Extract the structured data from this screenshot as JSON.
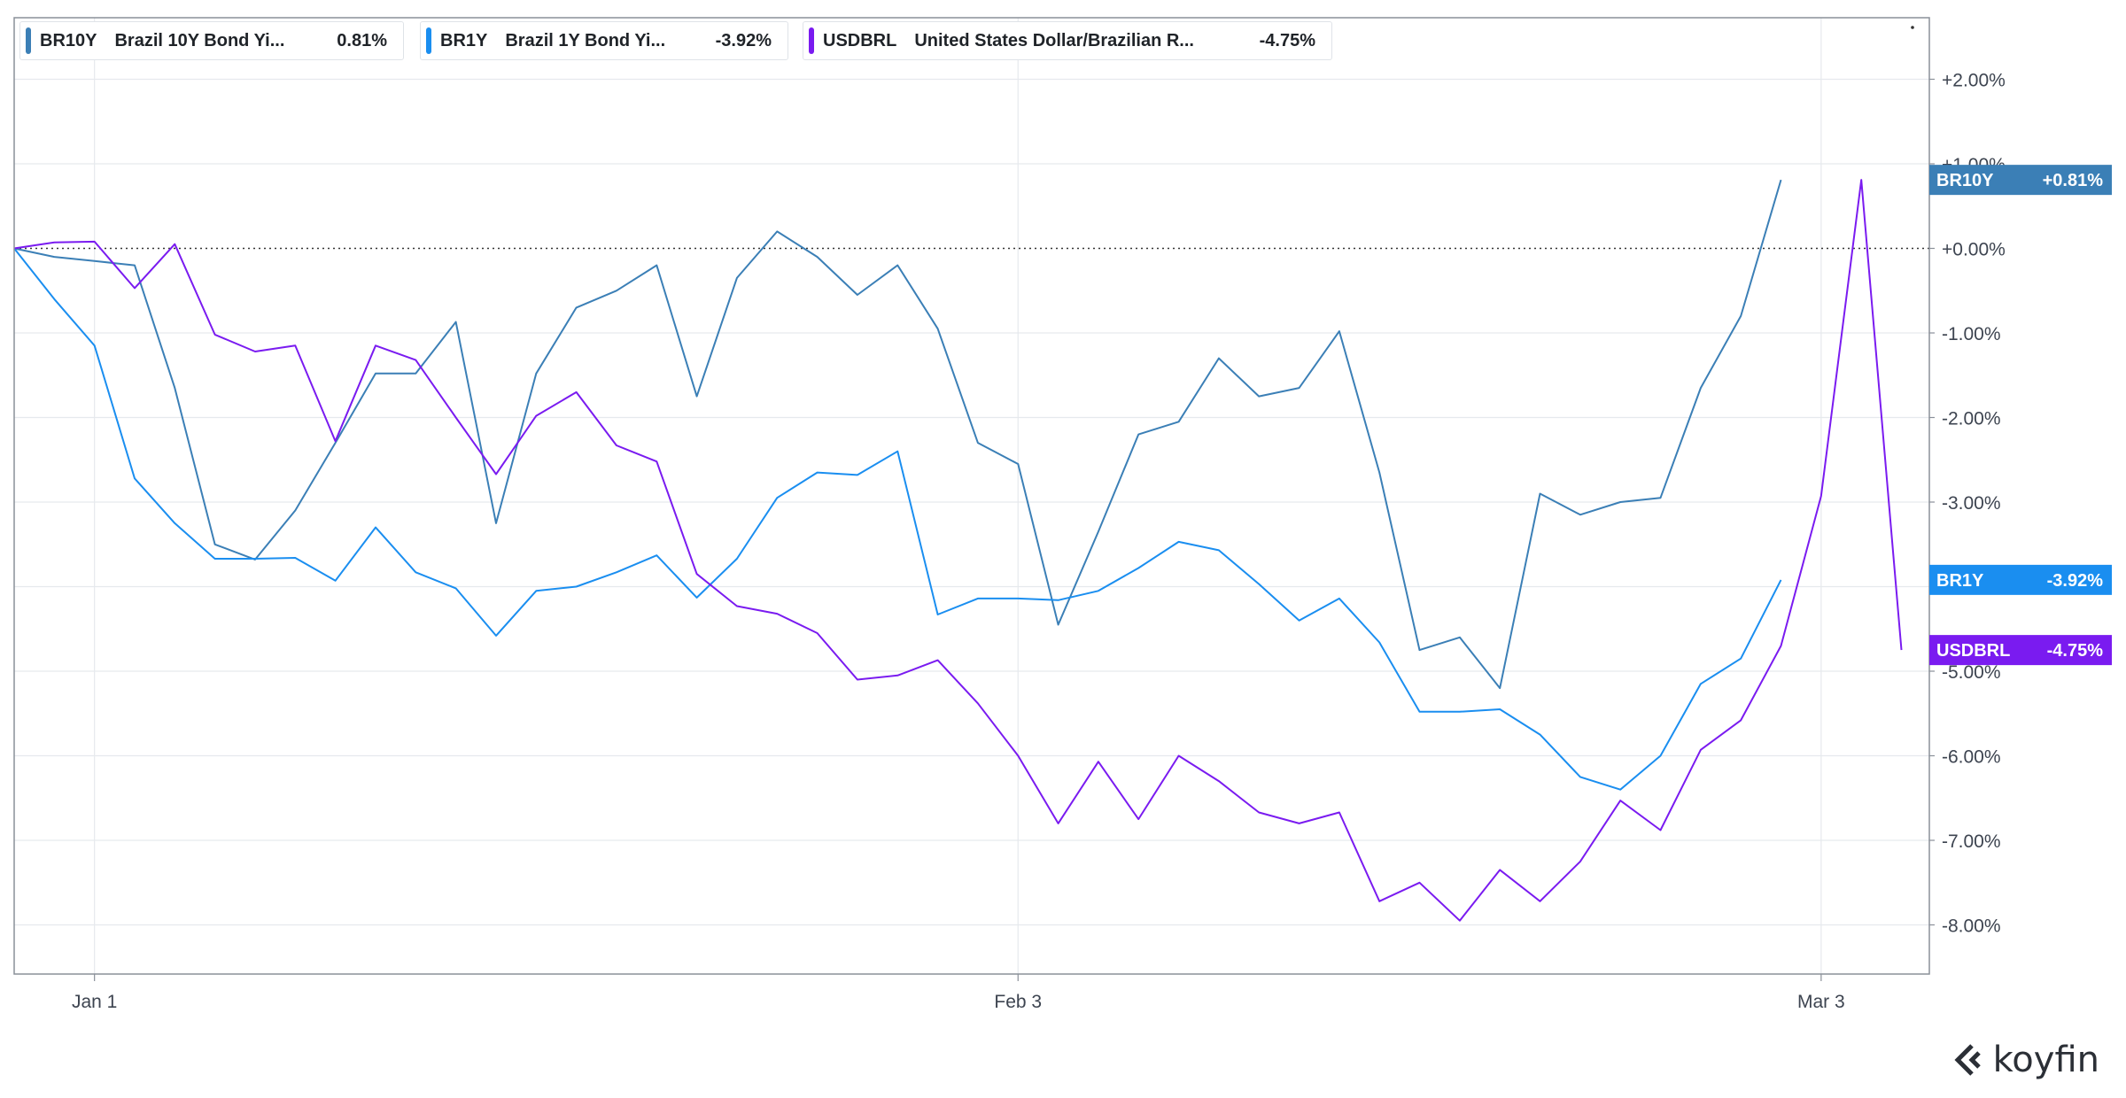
{
  "legend": [
    {
      "ticker": "BR10Y",
      "name": "Brazil 10Y Bond Yi...",
      "value": "0.81%",
      "color": "#3b7fb6"
    },
    {
      "ticker": "BR1Y",
      "name": "Brazil 1Y Bond Yi...",
      "value": "-3.92%",
      "color": "#1a8ef0"
    },
    {
      "ticker": "USDBRL",
      "name": "United States Dollar/Brazilian R...",
      "value": "-4.75%",
      "color": "#7a1bf0"
    }
  ],
  "logo": {
    "text": "koyfin",
    "icon": "koyfin-logo-icon"
  },
  "chart_data": {
    "type": "line",
    "ylim": [
      -8.6,
      2.6
    ],
    "yticks": [
      2,
      1,
      0,
      -1,
      -2,
      -3,
      -4,
      -5,
      -6,
      -7,
      -8
    ],
    "ytick_labels": [
      "+2.00%",
      "+1.00%",
      "+0.00%",
      "-1.00%",
      "-2.00%",
      "-3.00%",
      "-4.00%",
      "-5.00%",
      "-6.00%",
      "-7.00%",
      "-8.00%"
    ],
    "xlim": [
      0,
      48
    ],
    "xticks": [
      {
        "x": 2,
        "label": "Jan 1"
      },
      {
        "x": 25,
        "label": "Feb 3"
      },
      {
        "x": 45,
        "label": "Mar 3"
      }
    ],
    "zero_line": true,
    "grid": true,
    "series": [
      {
        "name": "BR10Y",
        "color": "#3b7fb6",
        "end_label": "+0.81%",
        "values": [
          0,
          -0.1,
          -0.15,
          -0.2,
          -1.65,
          -3.5,
          -3.68,
          -3.1,
          -2.3,
          -1.48,
          -1.48,
          -0.87,
          -3.25,
          -1.48,
          -0.7,
          -0.5,
          -0.2,
          -1.75,
          -0.35,
          0.2,
          -0.1,
          -0.55,
          -0.2,
          -0.95,
          -2.3,
          -2.55,
          -4.45,
          -3.35,
          -2.2,
          -2.05,
          -1.3,
          -1.75,
          -1.65,
          -0.98,
          -2.65,
          -4.75,
          -4.6,
          -5.2,
          -2.9,
          -3.15,
          -3.0,
          -2.95,
          -1.65,
          -0.8,
          0.81
        ]
      },
      {
        "name": "BR1Y",
        "color": "#1a8ef0",
        "end_label": "-3.92%",
        "values": [
          0,
          -0.6,
          -1.15,
          -2.72,
          -3.25,
          -3.67,
          -3.67,
          -3.66,
          -3.93,
          -3.3,
          -3.83,
          -4.02,
          -4.58,
          -4.05,
          -4.0,
          -3.83,
          -3.63,
          -4.13,
          -3.67,
          -2.95,
          -2.65,
          -2.68,
          -2.4,
          -4.33,
          -4.14,
          -4.14,
          -4.16,
          -4.05,
          -3.78,
          -3.47,
          -3.57,
          -3.97,
          -4.4,
          -4.14,
          -4.66,
          -5.48,
          -5.48,
          -5.45,
          -5.75,
          -6.25,
          -6.4,
          -6.0,
          -5.15,
          -4.85,
          -3.92
        ]
      },
      {
        "name": "USDBRL",
        "color": "#7a1bf0",
        "end_label": "-4.75%",
        "values": [
          0,
          0.07,
          0.08,
          -0.47,
          0.05,
          -1.02,
          -1.22,
          -1.15,
          -2.28,
          -1.15,
          -1.32,
          -2.0,
          -2.67,
          -1.98,
          -1.7,
          -2.33,
          -2.52,
          -3.85,
          -4.23,
          -4.32,
          -4.55,
          -5.1,
          -5.05,
          -4.87,
          -5.38,
          -6.0,
          -6.8,
          -6.07,
          -6.75,
          -6.0,
          -6.3,
          -6.67,
          -6.8,
          -6.67,
          -7.72,
          -7.5,
          -7.95,
          -7.35,
          -7.72,
          -7.25,
          -6.53,
          -6.88,
          -5.93,
          -5.58,
          -4.7,
          -2.93,
          0.81,
          -4.75
        ]
      }
    ]
  }
}
